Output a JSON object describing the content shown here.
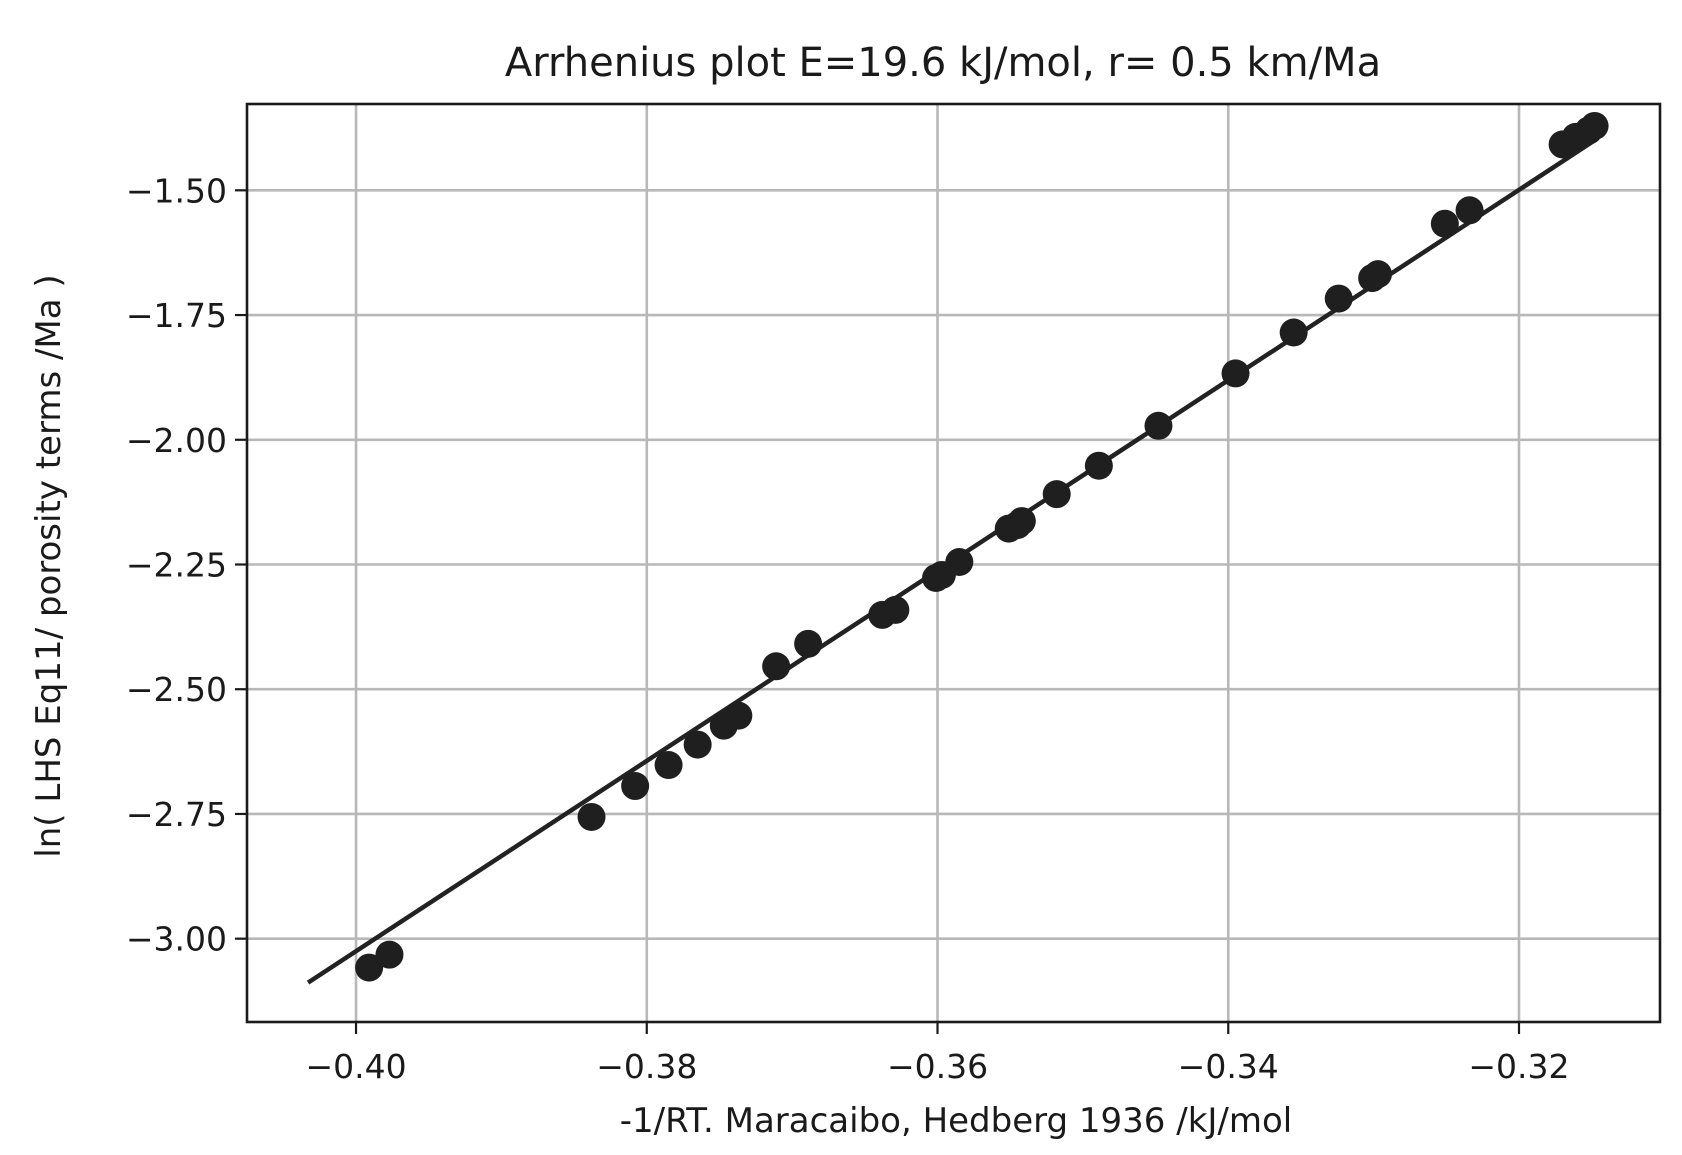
{
  "chart_data": {
    "type": "scatter",
    "title": "Arrhenius plot E=19.6 kJ/mol, r= 0.5 km/Ma",
    "xlabel": "-1/RT.  Maracaibo, Hedberg 1936    /kJ/mol",
    "ylabel": "ln( LHS Eq11/ porosity terms /Ma )",
    "xlim": [
      -0.4075,
      -0.3103
    ],
    "ylim": [
      -3.167,
      -1.327
    ],
    "grid": true,
    "x_ticks": [
      -0.4,
      -0.38,
      -0.36,
      -0.34,
      -0.32
    ],
    "x_tick_labels": [
      "−0.40",
      "−0.38",
      "−0.36",
      "−0.34",
      "−0.32"
    ],
    "y_ticks": [
      -1.5,
      -1.75,
      -2.0,
      -2.25,
      -2.5,
      -2.75,
      -3.0
    ],
    "y_tick_labels": [
      "−1.50",
      "−1.75",
      "−2.00",
      "−2.25",
      "−2.50",
      "−2.75",
      "−3.00"
    ],
    "point_color": "#1f1f1f",
    "line_color": "#222222",
    "points": [
      {
        "x": -0.3991,
        "y": -3.058
      },
      {
        "x": -0.3977,
        "y": -3.032
      },
      {
        "x": -0.3838,
        "y": -2.756
      },
      {
        "x": -0.3808,
        "y": -2.694
      },
      {
        "x": -0.3785,
        "y": -2.652
      },
      {
        "x": -0.3765,
        "y": -2.611
      },
      {
        "x": -0.3747,
        "y": -2.573
      },
      {
        "x": -0.3737,
        "y": -2.553
      },
      {
        "x": -0.3711,
        "y": -2.454
      },
      {
        "x": -0.3689,
        "y": -2.409
      },
      {
        "x": -0.3638,
        "y": -2.351
      },
      {
        "x": -0.3629,
        "y": -2.341
      },
      {
        "x": -0.3601,
        "y": -2.277
      },
      {
        "x": -0.3597,
        "y": -2.271
      },
      {
        "x": -0.3585,
        "y": -2.245
      },
      {
        "x": -0.3551,
        "y": -2.178
      },
      {
        "x": -0.3545,
        "y": -2.171
      },
      {
        "x": -0.3542,
        "y": -2.163
      },
      {
        "x": -0.3518,
        "y": -2.109
      },
      {
        "x": -0.3489,
        "y": -2.052
      },
      {
        "x": -0.3448,
        "y": -1.972
      },
      {
        "x": -0.3395,
        "y": -1.867
      },
      {
        "x": -0.3355,
        "y": -1.785
      },
      {
        "x": -0.3324,
        "y": -1.717
      },
      {
        "x": -0.3301,
        "y": -1.676
      },
      {
        "x": -0.3297,
        "y": -1.668
      },
      {
        "x": -0.3251,
        "y": -1.567
      },
      {
        "x": -0.3234,
        "y": -1.54
      },
      {
        "x": -0.317,
        "y": -1.408
      },
      {
        "x": -0.3161,
        "y": -1.393
      },
      {
        "x": -0.3152,
        "y": -1.38
      },
      {
        "x": -0.3148,
        "y": -1.371
      }
    ],
    "fit_line": {
      "x": [
        -0.4033,
        -0.3148
      ],
      "y": [
        -3.088,
        -1.4
      ]
    }
  }
}
